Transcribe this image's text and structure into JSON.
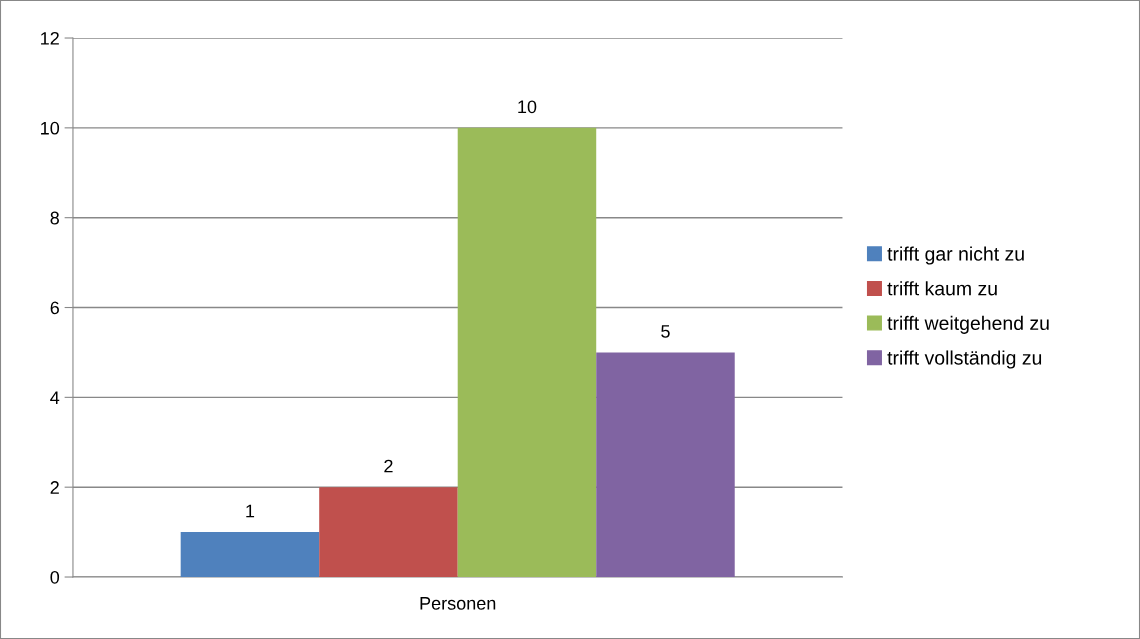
{
  "chart_data": {
    "type": "bar",
    "categories": [
      "Personen"
    ],
    "series": [
      {
        "name": "trifft gar nicht zu",
        "color": "#4f81bd",
        "values": [
          1
        ]
      },
      {
        "name": "trifft kaum zu",
        "color": "#c0504d",
        "values": [
          2
        ]
      },
      {
        "name": "trifft weitgehend zu",
        "color": "#9bbb59",
        "values": [
          10
        ]
      },
      {
        "name": "trifft vollständig zu",
        "color": "#8064a2",
        "values": [
          5
        ]
      }
    ],
    "ylim": [
      0,
      12
    ],
    "yticks": [
      0,
      2,
      4,
      6,
      8,
      10,
      12
    ],
    "grid": "y",
    "legend": "right",
    "data_labels": true
  }
}
